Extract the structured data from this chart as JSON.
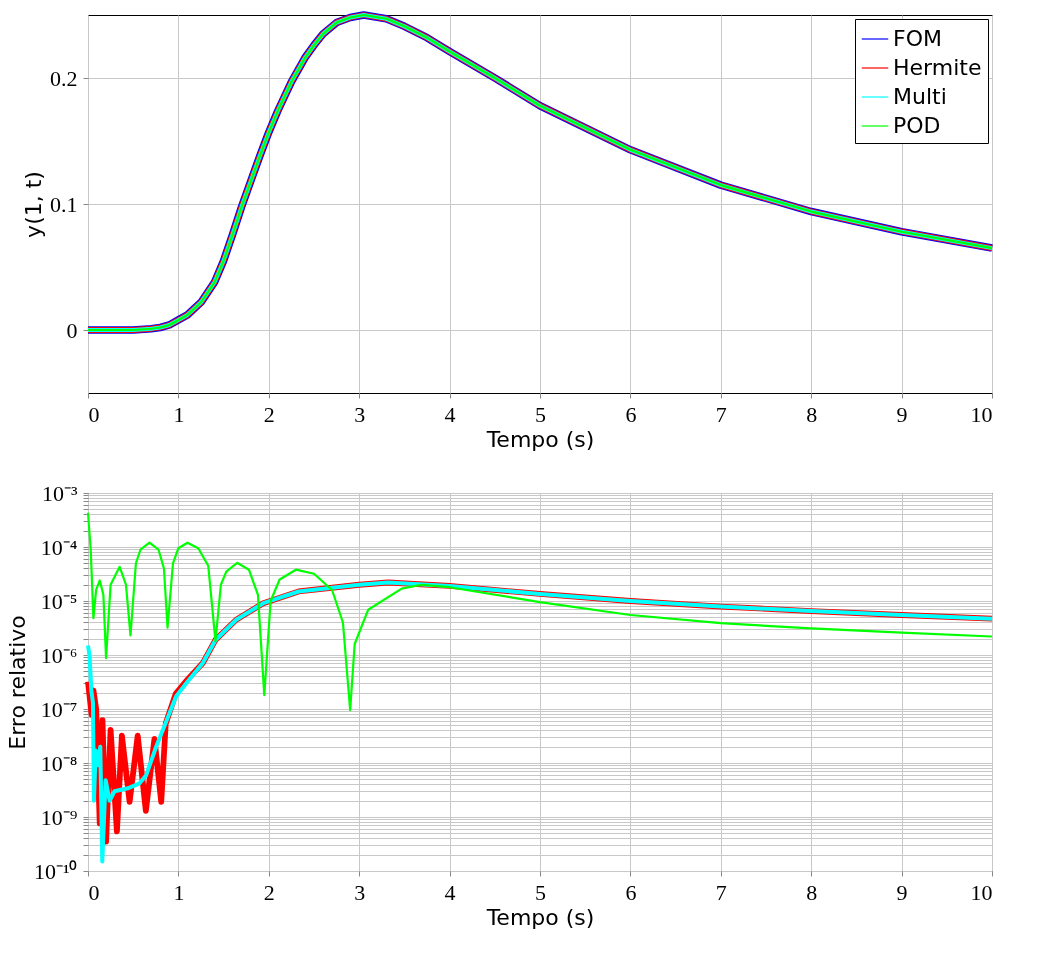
{
  "chart_data": [
    {
      "type": "line",
      "xlabel": "Tempo (s)",
      "ylabel": "y(1, t)",
      "legend": "top right",
      "grid": true,
      "xlim": [
        0,
        10
      ],
      "xticks": [
        0,
        1,
        2,
        3,
        4,
        5,
        6,
        7,
        8,
        9,
        10
      ],
      "ylim": [
        -0.05,
        0.25
      ],
      "yticks": [
        0,
        0.1,
        0.2
      ],
      "x": [
        0,
        0.5,
        0.7,
        0.8,
        0.9,
        1,
        1.1,
        1.25,
        1.4,
        1.5,
        1.6,
        1.7,
        1.8,
        1.9,
        2,
        2.1,
        2.25,
        2.4,
        2.5,
        2.6,
        2.75,
        2.9,
        3.05,
        3.3,
        3.5,
        3.75,
        4,
        4.5,
        5,
        6,
        7,
        8,
        9,
        10
      ],
      "series": [
        {
          "name": "FOM",
          "color": "#0000ff",
          "values": [
            0,
            0,
            0.001,
            0.002,
            0.004,
            0.008,
            0.012,
            0.022,
            0.038,
            0.055,
            0.076,
            0.098,
            0.118,
            0.138,
            0.157,
            0.174,
            0.197,
            0.216,
            0.226,
            0.235,
            0.244,
            0.248,
            0.25,
            0.247,
            0.241,
            0.232,
            0.221,
            0.2,
            0.178,
            0.143,
            0.115,
            0.094,
            0.078,
            0.065
          ]
        },
        {
          "name": "Hermite",
          "color": "#ff0000",
          "values": [
            0,
            0,
            0.001,
            0.002,
            0.004,
            0.008,
            0.012,
            0.022,
            0.038,
            0.055,
            0.076,
            0.098,
            0.118,
            0.138,
            0.157,
            0.174,
            0.197,
            0.216,
            0.226,
            0.235,
            0.244,
            0.248,
            0.25,
            0.247,
            0.241,
            0.232,
            0.221,
            0.2,
            0.178,
            0.143,
            0.115,
            0.094,
            0.078,
            0.065
          ]
        },
        {
          "name": "Multi",
          "color": "#00ffff",
          "values": [
            0,
            0,
            0.001,
            0.002,
            0.004,
            0.008,
            0.012,
            0.022,
            0.038,
            0.055,
            0.076,
            0.098,
            0.118,
            0.138,
            0.157,
            0.174,
            0.197,
            0.216,
            0.226,
            0.235,
            0.244,
            0.248,
            0.25,
            0.247,
            0.241,
            0.232,
            0.221,
            0.2,
            0.178,
            0.143,
            0.115,
            0.094,
            0.078,
            0.065
          ]
        },
        {
          "name": "POD",
          "color": "#00ff00",
          "values": [
            0,
            0,
            0.001,
            0.002,
            0.004,
            0.008,
            0.012,
            0.022,
            0.038,
            0.055,
            0.076,
            0.098,
            0.118,
            0.138,
            0.157,
            0.174,
            0.197,
            0.216,
            0.226,
            0.235,
            0.244,
            0.248,
            0.25,
            0.247,
            0.241,
            0.232,
            0.221,
            0.2,
            0.178,
            0.143,
            0.115,
            0.094,
            0.078,
            0.065
          ]
        }
      ]
    },
    {
      "type": "line",
      "xlabel": "Tempo (s)",
      "ylabel": "Erro relativo",
      "legend": "top right",
      "grid": true,
      "log": true,
      "xlim": [
        0,
        10
      ],
      "xticks": [
        0,
        1,
        2,
        3,
        4,
        5,
        6,
        7,
        8,
        9,
        10
      ],
      "ylim": [
        1e-10,
        0.001
      ],
      "yticks": [
        {
          "value": 1e-10,
          "label": "10⁻¹⁰"
        },
        {
          "value": 2e-10,
          "label": null
        },
        {
          "value": 3e-10,
          "label": null
        },
        {
          "value": 4e-10,
          "label": null
        },
        {
          "value": 5e-10,
          "label": null
        },
        {
          "value": 6e-10,
          "label": null
        },
        {
          "value": 7e-10,
          "label": null
        },
        {
          "value": 8e-10,
          "label": null
        },
        {
          "value": 9e-10,
          "label": null
        },
        {
          "value": 1e-09,
          "label": "10⁻⁹"
        },
        {
          "value": 2e-09,
          "label": null
        },
        {
          "value": 3e-09,
          "label": null
        },
        {
          "value": 4e-09,
          "label": null
        },
        {
          "value": 5e-09,
          "label": null
        },
        {
          "value": 6e-09,
          "label": null
        },
        {
          "value": 7e-09,
          "label": null
        },
        {
          "value": 8e-09,
          "label": null
        },
        {
          "value": 9e-09,
          "label": null
        },
        {
          "value": 1e-08,
          "label": "10⁻⁸"
        },
        {
          "value": 2e-08,
          "label": null
        },
        {
          "value": 3e-08,
          "label": null
        },
        {
          "value": 4e-08,
          "label": null
        },
        {
          "value": 5e-08,
          "label": null
        },
        {
          "value": 6e-08,
          "label": null
        },
        {
          "value": 7e-08,
          "label": null
        },
        {
          "value": 8e-08,
          "label": null
        },
        {
          "value": 9e-08,
          "label": null
        },
        {
          "value": 1e-07,
          "label": "10⁻⁷"
        },
        {
          "value": 2e-07,
          "label": null
        },
        {
          "value": 3e-07,
          "label": null
        },
        {
          "value": 4e-07,
          "label": null
        },
        {
          "value": 5e-07,
          "label": null
        },
        {
          "value": 6e-07,
          "label": null
        },
        {
          "value": 7e-07,
          "label": null
        },
        {
          "value": 8e-07,
          "label": null
        },
        {
          "value": 9e-07,
          "label": null
        },
        {
          "value": 1e-06,
          "label": "10⁻⁶"
        },
        {
          "value": 2e-06,
          "label": null
        },
        {
          "value": 3e-06,
          "label": null
        },
        {
          "value": 4e-06,
          "label": null
        },
        {
          "value": 5e-06,
          "label": null
        },
        {
          "value": 6e-06,
          "label": null
        },
        {
          "value": 7e-06,
          "label": null
        },
        {
          "value": 8e-06,
          "label": null
        },
        {
          "value": 9e-06,
          "label": null
        },
        {
          "value": 1e-05,
          "label": "10⁻⁵"
        },
        {
          "value": 2e-05,
          "label": null
        },
        {
          "value": 3e-05,
          "label": null
        },
        {
          "value": 4e-05,
          "label": null
        },
        {
          "value": 5e-05,
          "label": null
        },
        {
          "value": 6e-05,
          "label": null
        },
        {
          "value": 7e-05,
          "label": null
        },
        {
          "value": 8e-05,
          "label": null
        },
        {
          "value": 9e-05,
          "label": null
        },
        {
          "value": 0.0001,
          "label": "10⁻⁴"
        },
        {
          "value": 0.0002,
          "label": null
        },
        {
          "value": 0.0003,
          "label": null
        },
        {
          "value": 0.0004,
          "label": null
        },
        {
          "value": 0.0005,
          "label": null
        },
        {
          "value": 0.0006,
          "label": null
        },
        {
          "value": 0.0007,
          "label": null
        },
        {
          "value": 0.0008,
          "label": null
        },
        {
          "value": 0.0009,
          "label": null
        },
        {
          "value": 0.001,
          "label": "10⁻³"
        }
      ],
      "series": [
        {
          "name": "Hermite",
          "color": "#ff0000",
          "x": [
            0,
            0.04,
            0.06,
            0.09,
            0.13,
            0.16,
            0.2,
            0.25,
            0.32,
            0.375,
            0.46,
            0.55,
            0.64,
            0.735,
            0.81,
            0.86,
            0.97,
            1.1,
            1.27,
            1.41,
            1.64,
            1.94,
            2.33,
            3,
            3.32,
            4,
            5,
            6,
            7,
            8,
            9,
            10
          ],
          "values": [
            3.2e-07,
            7.8e-08,
            2.2e-07,
            1e-07,
            7.6e-10,
            6.2e-08,
            3.5e-10,
            4.1e-08,
            5.4e-10,
            3.2e-08,
            1.9e-09,
            3.2e-08,
            1.3e-09,
            2.8e-08,
            1.9e-09,
            5.4e-08,
            1.9e-07,
            3.5e-07,
            7.1e-07,
            1.9e-06,
            4.5e-06,
            9.1e-06,
            1.5e-05,
            2e-05,
            2.2e-05,
            1.9e-05,
            1.35e-05,
            1e-05,
            7.9e-06,
            6.5e-06,
            5.5e-06,
            4.7e-06
          ]
        },
        {
          "name": "Multi",
          "color": "#00ffff",
          "x": [
            0,
            0.018,
            0.037,
            0.055,
            0.066,
            0.085,
            0.11,
            0.136,
            0.158,
            0.195,
            0.239,
            0.294,
            0.441,
            0.57,
            0.643,
            0.754,
            0.864,
            0.974,
            1.1,
            1.27,
            1.41,
            1.64,
            1.94,
            2.33,
            3,
            3.32,
            4,
            5,
            6,
            7,
            8,
            9,
            10
          ],
          "values": [
            1.5e-06,
            9.3e-07,
            2.2e-07,
            1.3e-07,
            2e-09,
            1.7e-08,
            9.1e-09,
            2e-08,
            1.5e-10,
            4.8e-09,
            2e-09,
            3e-09,
            3.4e-09,
            4.2e-09,
            5.9e-09,
            2e-08,
            5.8e-08,
            1.7e-07,
            3.2e-07,
            7.1e-07,
            1.9e-06,
            4.5e-06,
            9.1e-06,
            1.5e-05,
            2e-05,
            2.2e-05,
            1.9e-05,
            1.35e-05,
            1e-05,
            7.9e-06,
            6.5e-06,
            5.5e-06,
            4.7e-06
          ]
        },
        {
          "name": "POD",
          "color": "#00ff00",
          "x": [
            0,
            0.03,
            0.06,
            0.09,
            0.13,
            0.17,
            0.2,
            0.25,
            0.35,
            0.42,
            0.47,
            0.53,
            0.58,
            0.68,
            0.78,
            0.84,
            0.88,
            0.94,
            1.0,
            1.1,
            1.22,
            1.33,
            1.41,
            1.47,
            1.53,
            1.65,
            1.78,
            1.88,
            1.95,
            2.02,
            2.12,
            2.3,
            2.5,
            2.7,
            2.82,
            2.9,
            2.95,
            3.1,
            3.47,
            3.69,
            4,
            5,
            6,
            7,
            8,
            9,
            10
          ],
          "values": [
            0.00043,
            8.9e-05,
            4.8e-06,
            1.6e-05,
            2.4e-05,
            1.3e-05,
            8.7e-07,
            2e-05,
            4.3e-05,
            2e-05,
            2.3e-06,
            5e-05,
            8.9e-05,
            0.00012,
            8.9e-05,
            4e-05,
            3.2e-06,
            5e-05,
            9.5e-05,
            0.00012,
            9.5e-05,
            4.5e-05,
            1.8e-06,
            2e-05,
            3.5e-05,
            5.1e-05,
            3.8e-05,
            1.3e-05,
            1.8e-07,
            1e-05,
            2.5e-05,
            3.8e-05,
            3.2e-05,
            1.6e-05,
            4e-06,
            9.5e-08,
            1.6e-06,
            6.9e-06,
            1.7e-05,
            2e-05,
            1.8e-05,
            9.5e-06,
            5.5e-06,
            3.9e-06,
            3.1e-06,
            2.6e-06,
            2.2e-06
          ]
        }
      ]
    }
  ]
}
